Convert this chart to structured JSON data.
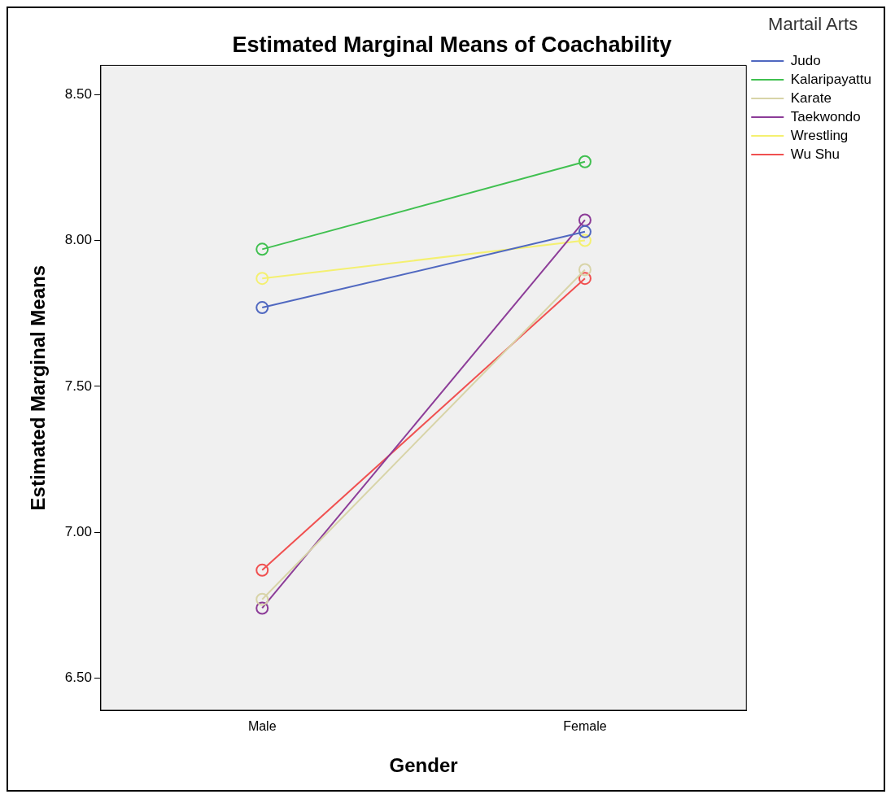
{
  "chart_data": {
    "type": "line",
    "title": "Estimated Marginal Means of Coachability",
    "xlabel": "Gender",
    "ylabel": "Estimated Marginal Means",
    "legend_title": "Martail Arts",
    "legend": "right",
    "marker": "circle",
    "grid": false,
    "categories": [
      "Male",
      "Female"
    ],
    "ylim": [
      6.39,
      8.6
    ],
    "yticks": [
      {
        "value": 6.5,
        "label": "6.50"
      },
      {
        "value": 7,
        "label": "7.00"
      },
      {
        "value": 7.5,
        "label": "7.50"
      },
      {
        "value": 8,
        "label": "8.00"
      },
      {
        "value": 8.5,
        "label": "8.50"
      }
    ],
    "series": [
      {
        "name": "Judo",
        "color": "#5068c0",
        "values": [
          7.77,
          8.03
        ]
      },
      {
        "name": "Kalaripayattu",
        "color": "#40c050",
        "values": [
          7.97,
          8.27
        ]
      },
      {
        "name": "Karate",
        "color": "#d8d4a8",
        "values": [
          6.77,
          7.9
        ]
      },
      {
        "name": "Taekwondo",
        "color": "#8c3c98",
        "values": [
          6.74,
          8.07
        ]
      },
      {
        "name": "Wrestling",
        "color": "#f4f070",
        "values": [
          7.87,
          8.0
        ]
      },
      {
        "name": "Wu Shu",
        "color": "#f05050",
        "values": [
          6.87,
          7.87
        ]
      }
    ]
  }
}
